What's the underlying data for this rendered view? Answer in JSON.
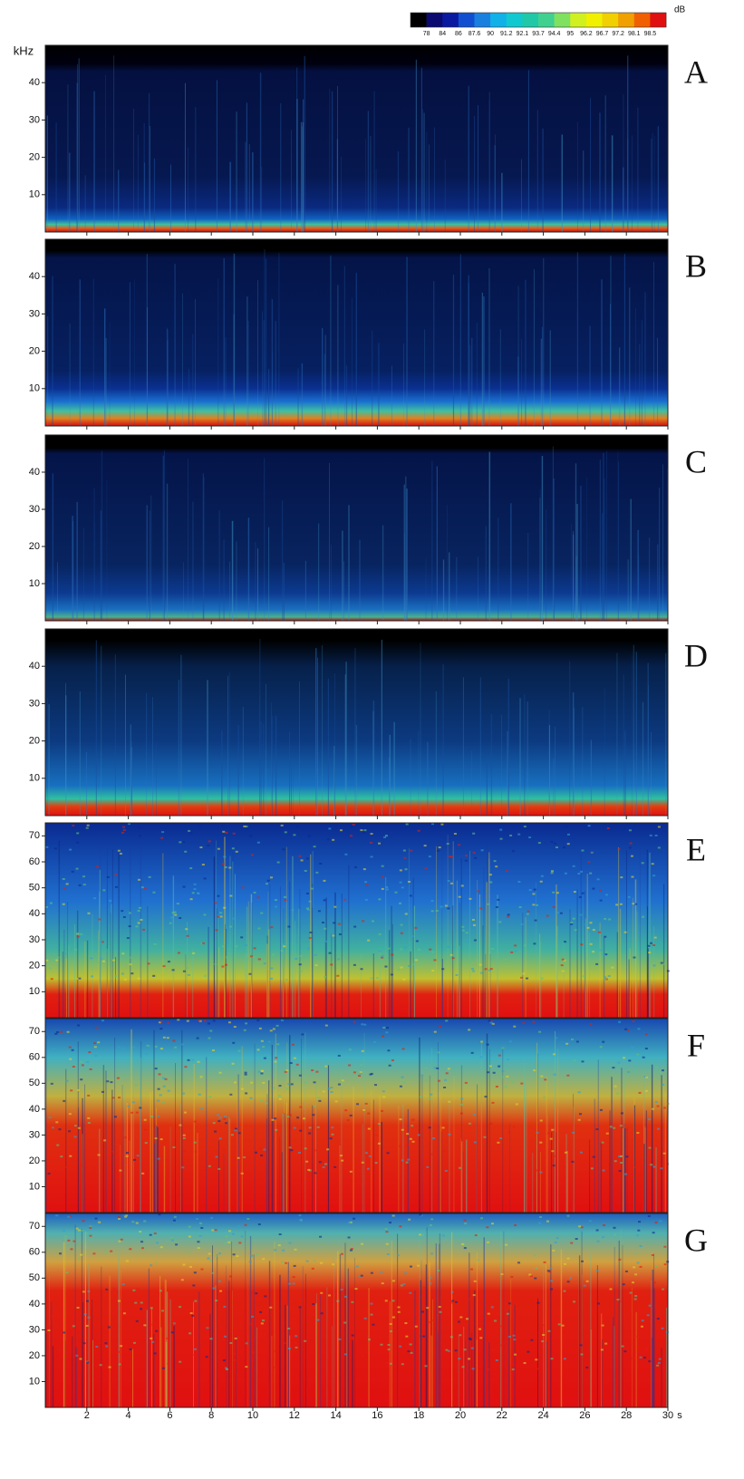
{
  "colorbar": {
    "label": "dB",
    "colors": [
      "#000000",
      "#0a0a70",
      "#0a1aa0",
      "#1050d0",
      "#1a80e0",
      "#10b0e8",
      "#10c8d0",
      "#20c8a8",
      "#40d090",
      "#80e060",
      "#d0f020",
      "#f0f000",
      "#f0d000",
      "#f0a000",
      "#f06000",
      "#e01010"
    ],
    "ticks": [
      78,
      84,
      86,
      87.6,
      90,
      91.2,
      92.1,
      93.7,
      94.4,
      95,
      96.2,
      96.7,
      97.2,
      98.1,
      98.5
    ]
  },
  "chart_data": [
    {
      "type": "spectrogram",
      "label": "A",
      "y_label": "kHz",
      "ylim": [
        0,
        50
      ],
      "yticks": [
        10,
        20,
        30,
        40
      ],
      "xlim": [
        0,
        30
      ],
      "xticks": [
        2,
        4,
        6,
        8,
        10,
        12,
        14,
        16,
        18,
        20,
        22,
        24,
        26,
        28,
        30
      ]
    },
    {
      "type": "spectrogram",
      "label": "B",
      "ylim": [
        0,
        50
      ],
      "yticks": [
        10,
        20,
        30,
        40
      ],
      "xlim": [
        0,
        30
      ],
      "xticks": [
        2,
        4,
        6,
        8,
        10,
        12,
        14,
        16,
        18,
        20,
        22,
        24,
        26,
        28,
        30
      ]
    },
    {
      "type": "spectrogram",
      "label": "C",
      "ylim": [
        0,
        50
      ],
      "yticks": [
        10,
        20,
        30,
        40
      ],
      "xlim": [
        0,
        30
      ],
      "xticks": [
        2,
        4,
        6,
        8,
        10,
        12,
        14,
        16,
        18,
        20,
        22,
        24,
        26,
        28,
        30
      ]
    },
    {
      "type": "spectrogram",
      "label": "D",
      "ylim": [
        0,
        50
      ],
      "yticks": [
        10,
        20,
        30,
        40
      ],
      "xlim": [
        0,
        30
      ],
      "xticks": [
        2,
        4,
        6,
        8,
        10,
        12,
        14,
        16,
        18,
        20,
        22,
        24,
        26,
        28,
        30
      ]
    },
    {
      "type": "spectrogram",
      "label": "E",
      "ylim": [
        0,
        75
      ],
      "yticks": [
        10,
        20,
        30,
        40,
        50,
        60,
        70
      ],
      "xlim": [
        0,
        30
      ],
      "xticks": [
        2,
        4,
        6,
        8,
        10,
        12,
        14,
        16,
        18,
        20,
        22,
        24,
        26,
        28,
        30
      ]
    },
    {
      "type": "spectrogram",
      "label": "F",
      "ylim": [
        0,
        75
      ],
      "yticks": [
        10,
        20,
        30,
        40,
        50,
        60,
        70
      ],
      "xlim": [
        0,
        30
      ],
      "xticks": [
        2,
        4,
        6,
        8,
        10,
        12,
        14,
        16,
        18,
        20,
        22,
        24,
        26,
        28,
        30
      ]
    },
    {
      "type": "spectrogram",
      "label": "G",
      "ylim": [
        0,
        75
      ],
      "yticks": [
        10,
        20,
        30,
        40,
        50,
        60,
        70
      ],
      "xlim": [
        0,
        30
      ],
      "xticks": [
        2,
        4,
        6,
        8,
        10,
        12,
        14,
        16,
        18,
        20,
        22,
        24,
        26,
        28,
        30
      ],
      "x_label": "s"
    }
  ]
}
